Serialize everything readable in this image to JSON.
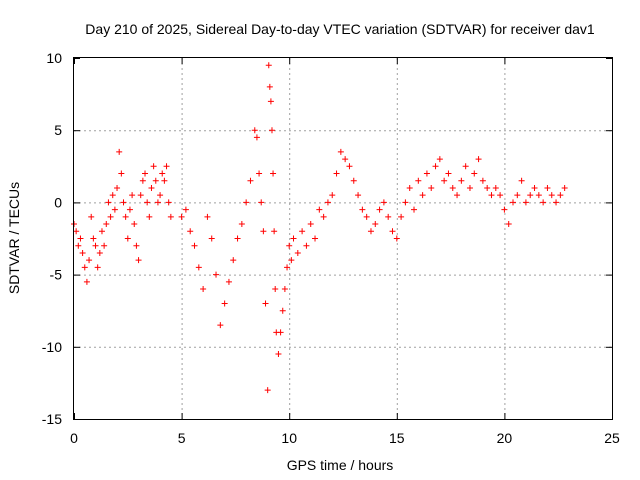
{
  "chart_data": {
    "type": "scatter",
    "title": "Day 210 of 2025, Sidereal Day-to-day VTEC variation (SDTVAR) for receiver dav1",
    "xlabel": "GPS time / hours",
    "ylabel": "SDTVAR / TECUs",
    "xlim": [
      0,
      25
    ],
    "ylim": [
      -15,
      10
    ],
    "xticks": [
      0,
      5,
      10,
      15,
      20,
      25
    ],
    "yticks": [
      -15,
      -10,
      -5,
      0,
      5,
      10
    ],
    "xtick_labels": [
      "0",
      "5",
      "10",
      "15",
      "20",
      "25"
    ],
    "ytick_labels": [
      "-15",
      "-10",
      "-5",
      "0",
      "5",
      "10"
    ],
    "grid": true,
    "marker": "plus",
    "color": "#ff0000",
    "series": [
      {
        "name": "SDTVAR",
        "x": [
          0.0,
          0.1,
          0.2,
          0.3,
          0.4,
          0.5,
          0.6,
          0.7,
          0.8,
          0.9,
          1.0,
          1.1,
          1.2,
          1.3,
          1.4,
          1.5,
          1.6,
          1.7,
          1.8,
          1.9,
          2.0,
          2.1,
          2.2,
          2.3,
          2.4,
          2.5,
          2.6,
          2.7,
          2.8,
          2.9,
          3.0,
          3.1,
          3.2,
          3.3,
          3.4,
          3.5,
          3.6,
          3.7,
          3.8,
          3.9,
          4.0,
          4.1,
          4.2,
          4.3,
          4.4,
          4.5,
          5.0,
          5.2,
          5.4,
          5.6,
          5.8,
          6.0,
          6.2,
          6.4,
          6.6,
          6.8,
          7.0,
          7.2,
          7.4,
          7.6,
          7.8,
          8.0,
          8.2,
          8.4,
          8.5,
          8.6,
          8.7,
          8.8,
          8.9,
          9.0,
          9.05,
          9.1,
          9.15,
          9.2,
          9.25,
          9.3,
          9.35,
          9.4,
          9.5,
          9.6,
          9.7,
          9.8,
          9.9,
          10.0,
          10.1,
          10.2,
          10.4,
          10.6,
          10.8,
          11.0,
          11.2,
          11.4,
          11.6,
          11.8,
          12.0,
          12.2,
          12.4,
          12.6,
          12.8,
          13.0,
          13.2,
          13.4,
          13.6,
          13.8,
          14.0,
          14.2,
          14.4,
          14.6,
          14.8,
          15.0,
          15.2,
          15.4,
          15.6,
          15.8,
          16.0,
          16.2,
          16.4,
          16.6,
          16.8,
          17.0,
          17.2,
          17.4,
          17.6,
          17.8,
          18.0,
          18.2,
          18.4,
          18.6,
          18.8,
          19.0,
          19.2,
          19.4,
          19.6,
          19.8,
          20.0,
          20.2,
          20.4,
          20.6,
          20.8,
          21.0,
          21.2,
          21.4,
          21.6,
          21.8,
          22.0,
          22.2,
          22.4,
          22.6,
          22.8
        ],
        "y": [
          -1.5,
          -2.0,
          -3.0,
          -2.5,
          -3.5,
          -4.5,
          -5.5,
          -4.0,
          -1.0,
          -2.5,
          -3.0,
          -4.5,
          -3.5,
          -2.0,
          -3.0,
          -1.5,
          0.0,
          -1.0,
          0.5,
          -0.5,
          1.0,
          3.5,
          2.0,
          0.0,
          -1.0,
          -2.5,
          -0.5,
          0.5,
          -1.5,
          -3.0,
          -4.0,
          0.5,
          1.5,
          2.0,
          0.0,
          -1.0,
          1.0,
          2.5,
          1.5,
          0.0,
          0.5,
          2.0,
          1.5,
          2.5,
          0.0,
          -1.0,
          -1.0,
          -0.5,
          -2.0,
          -3.0,
          -4.5,
          -6.0,
          -1.0,
          -2.5,
          -5.0,
          -8.5,
          -7.0,
          -5.5,
          -4.0,
          -2.5,
          -1.5,
          0.0,
          1.5,
          5.0,
          4.5,
          2.0,
          0.0,
          -2.0,
          -7.0,
          -13.0,
          9.5,
          8.0,
          7.0,
          5.0,
          2.0,
          -2.0,
          -6.0,
          -9.0,
          -10.5,
          -9.0,
          -7.5,
          -6.0,
          -4.5,
          -3.0,
          -4.0,
          -2.5,
          -3.5,
          -2.0,
          -3.0,
          -1.5,
          -2.5,
          -0.5,
          -1.0,
          0.0,
          0.5,
          2.0,
          3.5,
          3.0,
          2.5,
          1.5,
          0.5,
          -0.5,
          -1.0,
          -2.0,
          -1.5,
          -0.5,
          0.0,
          -1.0,
          -2.0,
          -2.5,
          -1.0,
          0.0,
          1.0,
          -0.5,
          1.5,
          0.5,
          2.0,
          1.0,
          2.5,
          3.0,
          1.5,
          2.0,
          1.0,
          0.5,
          1.5,
          2.5,
          1.0,
          2.0,
          3.0,
          1.5,
          1.0,
          0.5,
          1.0,
          0.5,
          -0.5,
          -1.5,
          0.0,
          0.5,
          1.5,
          0.0,
          0.5,
          1.0,
          0.5,
          0.0,
          1.0,
          0.5,
          0.0,
          0.5,
          1.0
        ]
      }
    ]
  }
}
